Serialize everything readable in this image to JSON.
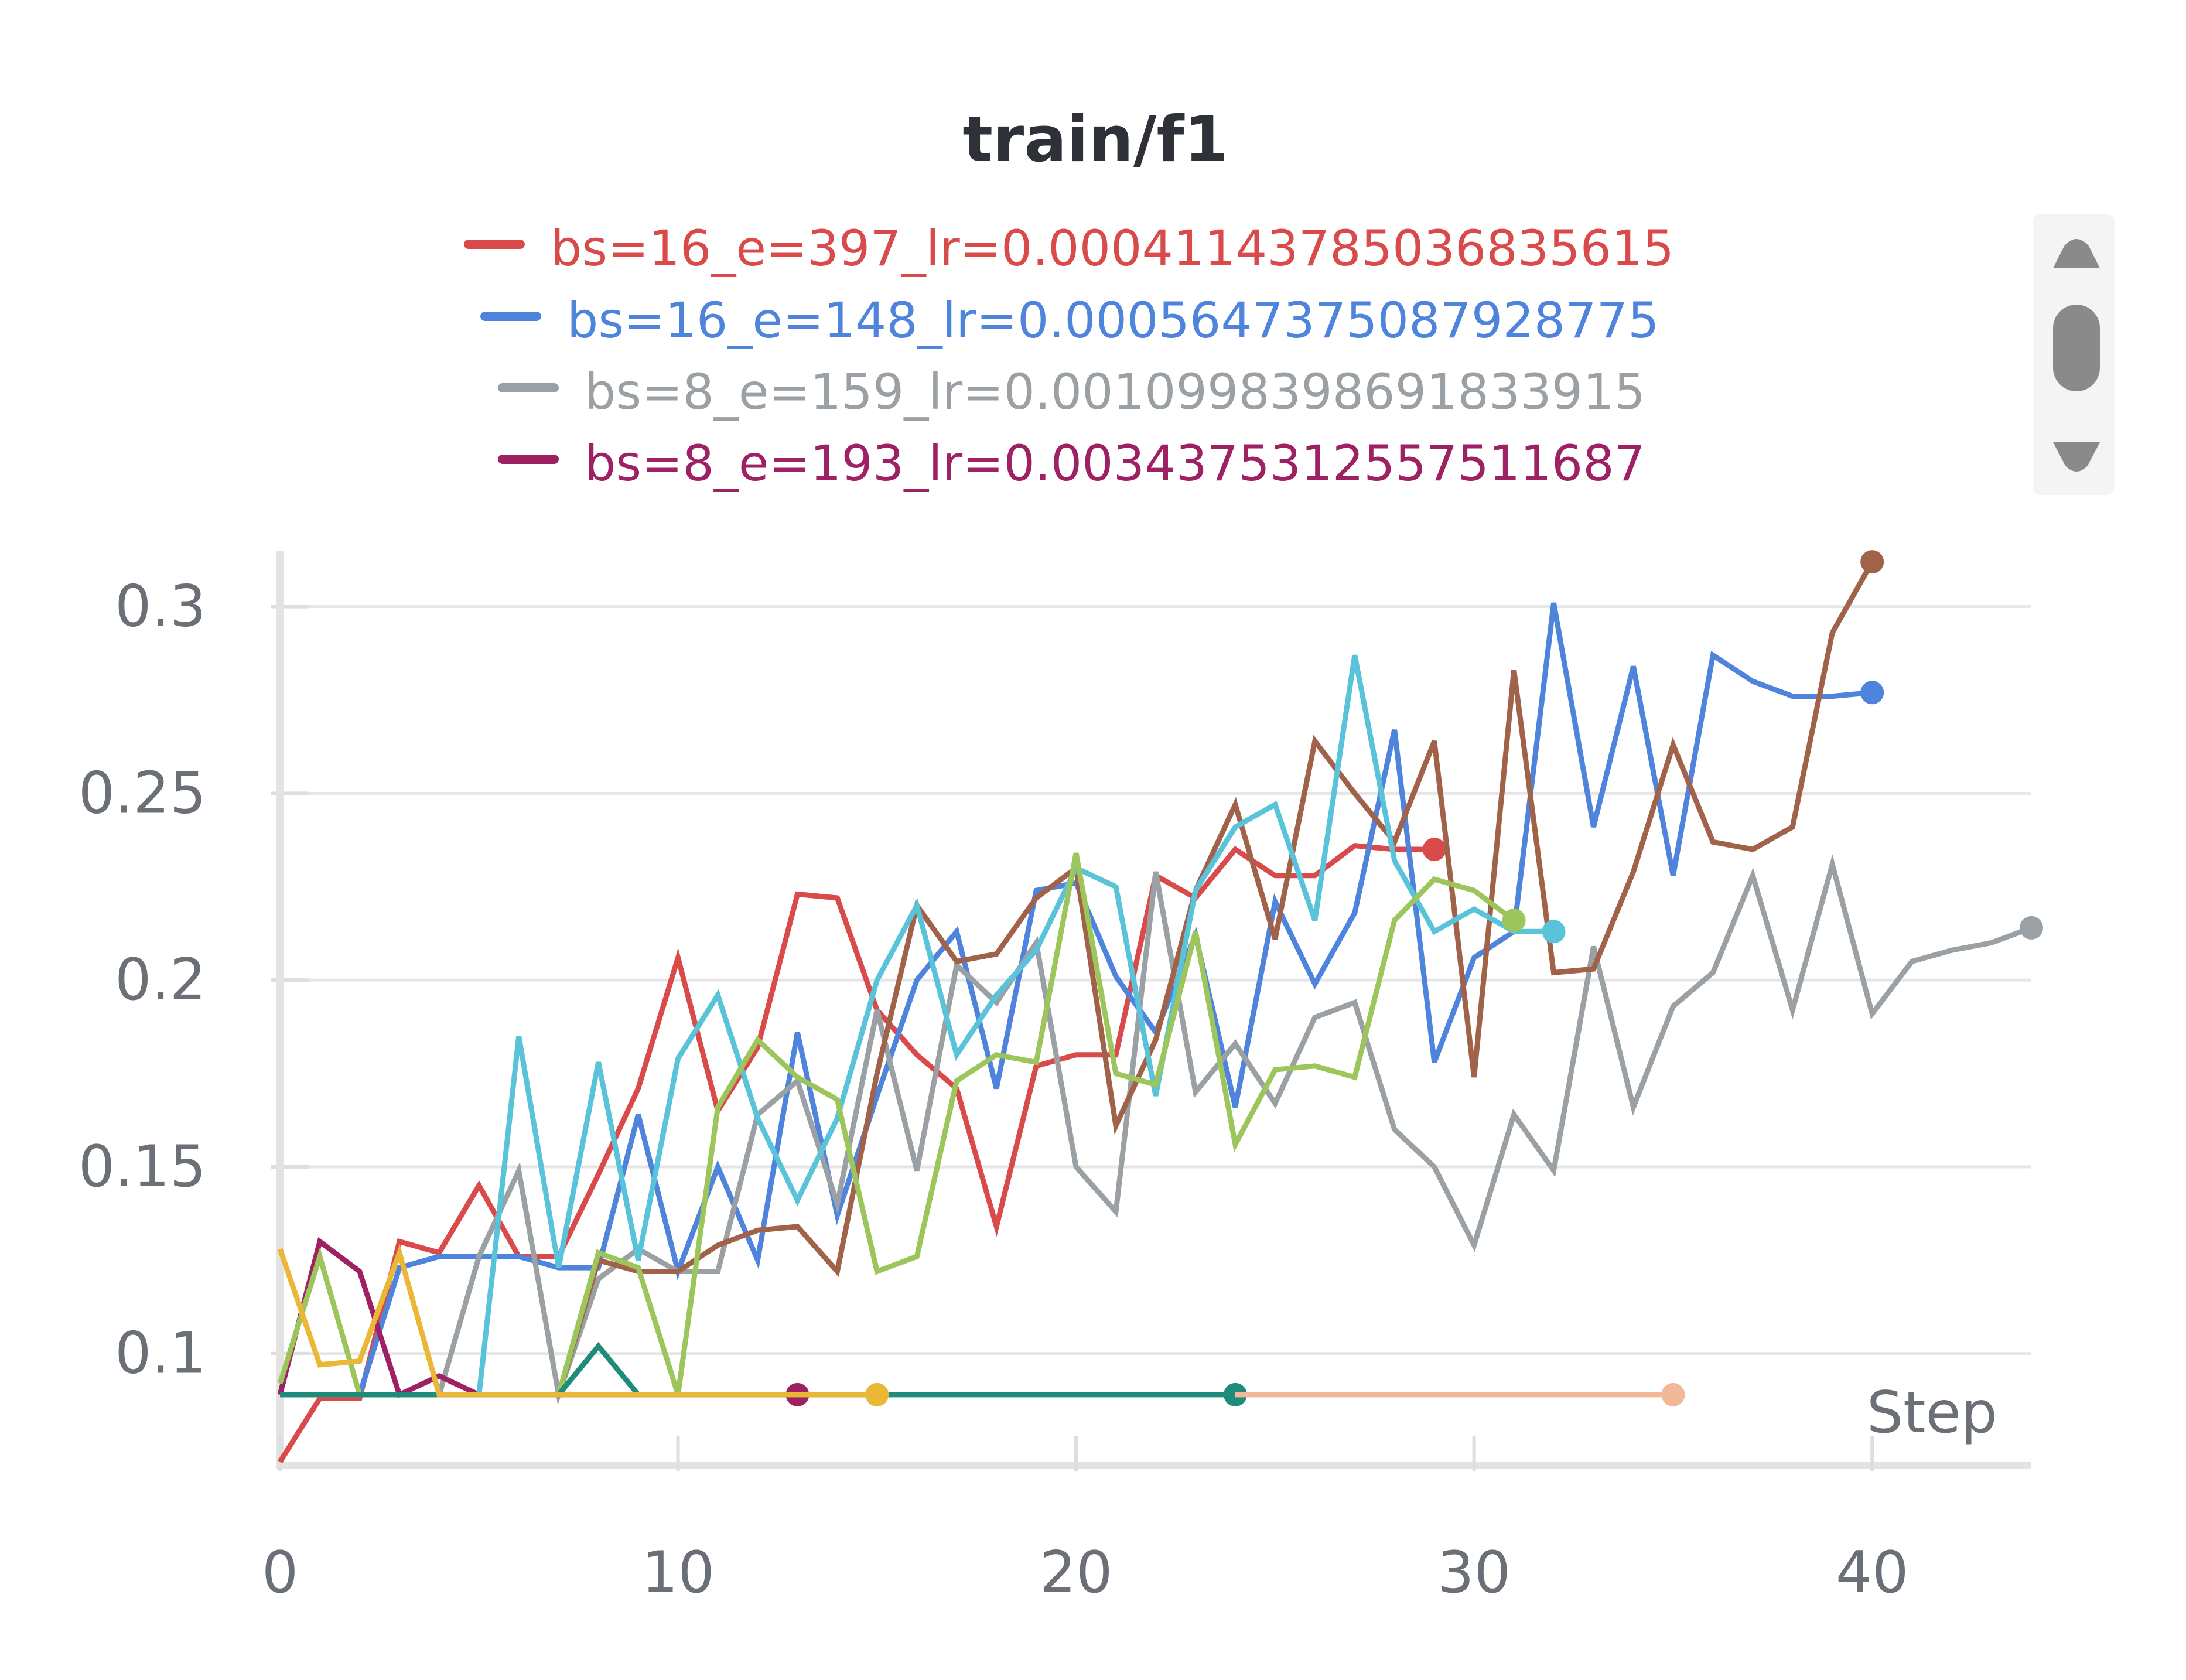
{
  "chart_data": {
    "type": "line",
    "title": "train/f1",
    "xlabel": "Step",
    "ylabel": "",
    "xlim": [
      0,
      44
    ],
    "ylim": [
      0.07,
      0.315
    ],
    "x_ticks": [
      "0",
      "10",
      "20",
      "30",
      "40"
    ],
    "y_ticks": [
      "0.1",
      "0.15",
      "0.2",
      "0.25",
      "0.3"
    ],
    "grid": "horizontal",
    "legend": {
      "placement": "top-center",
      "entries": [
        {
          "label": "bs=16_e=397_lr=0.00041143785036835615",
          "color": "#d94a4a"
        },
        {
          "label": "bs=16_e=148_lr=0.0005647375087928775",
          "color": "#4f84dc"
        },
        {
          "label": "bs=8_e=159_lr=0.0010998398691833915",
          "color": "#9aa0a3"
        },
        {
          "label": "bs=8_e=193_lr=0.003437531255751168​7",
          "color": "#9e2163"
        }
      ]
    },
    "series": [
      {
        "name": "bs=16_e=397_lr=0.00041143785036835615",
        "color": "#d94a4a",
        "x": [
          0,
          1,
          2,
          3,
          4,
          5,
          6,
          7,
          8,
          9,
          10,
          11,
          12,
          13,
          14,
          15,
          16,
          17,
          18,
          19,
          20,
          21,
          22,
          23,
          24,
          25,
          26,
          27,
          28,
          29
        ],
        "y": [
          0.071,
          0.088,
          0.088,
          0.13,
          0.127,
          0.145,
          0.126,
          0.126,
          0.148,
          0.171,
          0.206,
          0.165,
          0.182,
          0.223,
          0.222,
          0.192,
          0.18,
          0.171,
          0.134,
          0.177,
          0.18,
          0.18,
          0.228,
          0.222,
          0.235,
          0.228,
          0.228,
          0.236,
          0.235,
          0.235
        ]
      },
      {
        "name": "bs=16_e=148_lr=0.0005647375087928775",
        "color": "#4f84dc",
        "x": [
          0,
          1,
          2,
          3,
          4,
          5,
          6,
          7,
          8,
          9,
          10,
          11,
          12,
          13,
          14,
          15,
          16,
          17,
          18,
          19,
          20,
          21,
          22,
          23,
          24,
          25,
          26,
          27,
          28,
          29,
          30,
          31,
          32,
          33,
          34,
          35,
          36,
          37,
          38,
          39,
          40
        ],
        "y": [
          0.089,
          0.089,
          0.089,
          0.123,
          0.126,
          0.126,
          0.126,
          0.123,
          0.123,
          0.164,
          0.122,
          0.15,
          0.125,
          0.186,
          0.137,
          0.169,
          0.2,
          0.213,
          0.171,
          0.224,
          0.226,
          0.201,
          0.186,
          0.212,
          0.166,
          0.221,
          0.199,
          0.218,
          0.267,
          0.178,
          0.206,
          0.213,
          0.301,
          0.241,
          0.284,
          0.228,
          0.287,
          0.28,
          0.276,
          0.276,
          0.277
        ]
      },
      {
        "name": "bs=8_e=159_lr=0.0010998398691833915",
        "color": "#9aa0a3",
        "x": [
          0,
          1,
          2,
          3,
          4,
          5,
          6,
          7,
          8,
          9,
          10,
          11,
          12,
          13,
          14,
          15,
          16,
          17,
          18,
          19,
          20,
          21,
          22,
          23,
          24,
          25,
          26,
          27,
          28,
          29,
          30,
          31,
          32,
          33,
          34,
          35,
          36,
          37,
          38,
          39,
          40,
          41,
          42,
          43,
          44
        ],
        "y": [
          0.089,
          0.089,
          0.089,
          0.089,
          0.089,
          0.126,
          0.149,
          0.089,
          0.12,
          0.128,
          0.122,
          0.122,
          0.164,
          0.173,
          0.14,
          0.192,
          0.149,
          0.204,
          0.194,
          0.21,
          0.15,
          0.138,
          0.229,
          0.17,
          0.183,
          0.167,
          0.19,
          0.194,
          0.16,
          0.15,
          0.129,
          0.164,
          0.149,
          0.209,
          0.166,
          0.193,
          0.202,
          0.228,
          0.192,
          0.231,
          0.191,
          0.205,
          0.208,
          0.21,
          0.214
        ]
      },
      {
        "name": "bs=8_e=193_lr=0.0034375312557511687",
        "color": "#9e2163",
        "x": [
          0,
          1,
          2,
          3,
          4,
          5,
          6,
          7,
          8,
          9,
          10,
          11,
          12,
          13
        ],
        "y": [
          0.089,
          0.13,
          0.122,
          0.089,
          0.094,
          0.089,
          0.089,
          0.089,
          0.089,
          0.089,
          0.089,
          0.089,
          0.089,
          0.089
        ]
      },
      {
        "color": "#a0634a",
        "x": [
          7,
          8,
          9,
          10,
          11,
          12,
          13,
          14,
          15,
          16,
          17,
          18,
          19,
          20,
          21,
          22,
          23,
          24,
          25,
          26,
          27,
          28,
          29,
          30,
          31,
          32,
          33,
          34,
          35,
          36,
          37,
          38,
          39,
          40
        ],
        "y": [
          0.089,
          0.125,
          0.122,
          0.122,
          0.129,
          0.133,
          0.134,
          0.122,
          0.175,
          0.22,
          0.205,
          0.207,
          0.222,
          0.23,
          0.161,
          0.184,
          0.224,
          0.247,
          0.211,
          0.264,
          0.25,
          0.237,
          0.264,
          0.174,
          0.283,
          0.202,
          0.203,
          0.229,
          0.263,
          0.237,
          0.235,
          0.241,
          0.293,
          0.312
        ]
      },
      {
        "color": "#59c3d9",
        "x": [
          0,
          1,
          2,
          3,
          4,
          5,
          6,
          7,
          8,
          9,
          10,
          11,
          12,
          13,
          14,
          15,
          16,
          17,
          18,
          19,
          20,
          21,
          22,
          23,
          24,
          25,
          26,
          27,
          28,
          29,
          30,
          31,
          32
        ],
        "y": [
          0.089,
          0.089,
          0.089,
          0.089,
          0.089,
          0.089,
          0.185,
          0.123,
          0.178,
          0.125,
          0.179,
          0.196,
          0.163,
          0.141,
          0.163,
          0.2,
          0.22,
          0.18,
          0.196,
          0.208,
          0.23,
          0.225,
          0.169,
          0.224,
          0.241,
          0.247,
          0.216,
          0.287,
          0.232,
          0.213,
          0.219,
          0.213,
          0.213
        ]
      },
      {
        "color": "#9cc65b",
        "x": [
          0,
          1,
          2,
          3,
          4,
          5,
          6,
          7,
          8,
          9,
          10,
          11,
          12,
          13,
          14,
          15,
          16,
          17,
          18,
          19,
          20,
          21,
          22,
          23,
          24,
          25,
          26,
          27,
          28,
          29,
          30,
          31
        ],
        "y": [
          0.092,
          0.126,
          0.089,
          0.089,
          0.089,
          0.089,
          0.089,
          0.089,
          0.127,
          0.123,
          0.089,
          0.166,
          0.184,
          0.174,
          0.168,
          0.122,
          0.126,
          0.173,
          0.18,
          0.178,
          0.234,
          0.175,
          0.172,
          0.213,
          0.156,
          0.176,
          0.177,
          0.174,
          0.216,
          0.227,
          0.224,
          0.216
        ]
      },
      {
        "color": "#1e8c79",
        "x": [
          0,
          1,
          2,
          3,
          4,
          5,
          6,
          7,
          8,
          9,
          10,
          11,
          12,
          13,
          14,
          15,
          16,
          17,
          18,
          19,
          20,
          21,
          22,
          23,
          24
        ],
        "y": [
          0.089,
          0.089,
          0.089,
          0.089,
          0.089,
          0.089,
          0.089,
          0.089,
          0.102,
          0.089,
          0.089,
          0.089,
          0.089,
          0.089,
          0.089,
          0.089,
          0.089,
          0.089,
          0.089,
          0.089,
          0.089,
          0.089,
          0.089,
          0.089,
          0.089
        ]
      },
      {
        "color": "#f2b998",
        "x": [
          24,
          35
        ],
        "y": [
          0.089,
          0.089
        ]
      },
      {
        "color": "#eab737",
        "x": [
          0,
          1,
          2,
          3,
          4,
          5,
          6,
          7,
          8,
          9,
          10,
          11,
          12,
          13,
          14,
          15
        ],
        "y": [
          0.128,
          0.097,
          0.098,
          0.127,
          0.089,
          0.089,
          0.089,
          0.089,
          0.089,
          0.089,
          0.089,
          0.089,
          0.089,
          0.089,
          0.089,
          0.089
        ]
      }
    ]
  }
}
